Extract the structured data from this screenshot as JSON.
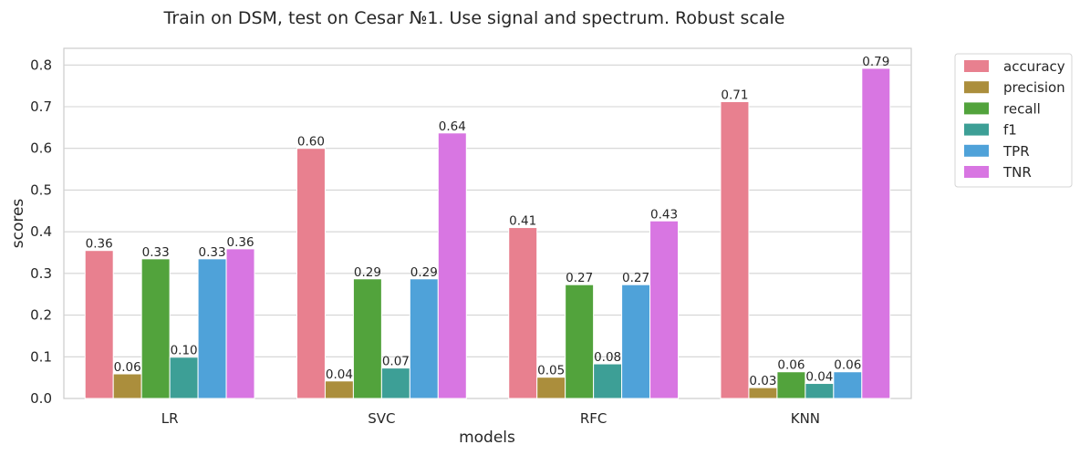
{
  "chart_data": {
    "type": "bar",
    "title": "Train on DSM, test on Cesar №1. Use signal and spectrum. Robust scale",
    "xlabel": "models",
    "ylabel": "scores",
    "categories": [
      "LR",
      "SVC",
      "RFC",
      "KNN"
    ],
    "ylim": [
      0,
      0.84
    ],
    "yticks": [
      "0.0",
      "0.1",
      "0.2",
      "0.3",
      "0.4",
      "0.5",
      "0.6",
      "0.7",
      "0.8"
    ],
    "grid": "horizontal",
    "legend_position": "outside-top-right",
    "series": [
      {
        "name": "accuracy",
        "color": "#e8808f",
        "values": [
          0.355,
          0.6,
          0.41,
          0.712
        ],
        "labels": [
          "0.36",
          "0.60",
          "0.41",
          "0.71"
        ]
      },
      {
        "name": "precision",
        "color": "#ab8e3c",
        "values": [
          0.059,
          0.042,
          0.051,
          0.026
        ],
        "labels": [
          "0.06",
          "0.04",
          "0.05",
          "0.03"
        ]
      },
      {
        "name": "recall",
        "color": "#52a33c",
        "values": [
          0.335,
          0.287,
          0.273,
          0.064
        ],
        "labels": [
          "0.33",
          "0.29",
          "0.27",
          "0.06"
        ]
      },
      {
        "name": "f1",
        "color": "#3d9f96",
        "values": [
          0.099,
          0.073,
          0.083,
          0.036
        ],
        "labels": [
          "0.10",
          "0.07",
          "0.08",
          "0.04"
        ]
      },
      {
        "name": "TPR",
        "color": "#4fa2d9",
        "values": [
          0.335,
          0.287,
          0.273,
          0.064
        ],
        "labels": [
          "0.33",
          "0.29",
          "0.27",
          "0.06"
        ]
      },
      {
        "name": "TNR",
        "color": "#d876e2",
        "values": [
          0.359,
          0.637,
          0.426,
          0.792
        ],
        "labels": [
          "0.36",
          "0.64",
          "0.43",
          "0.79"
        ]
      }
    ]
  }
}
